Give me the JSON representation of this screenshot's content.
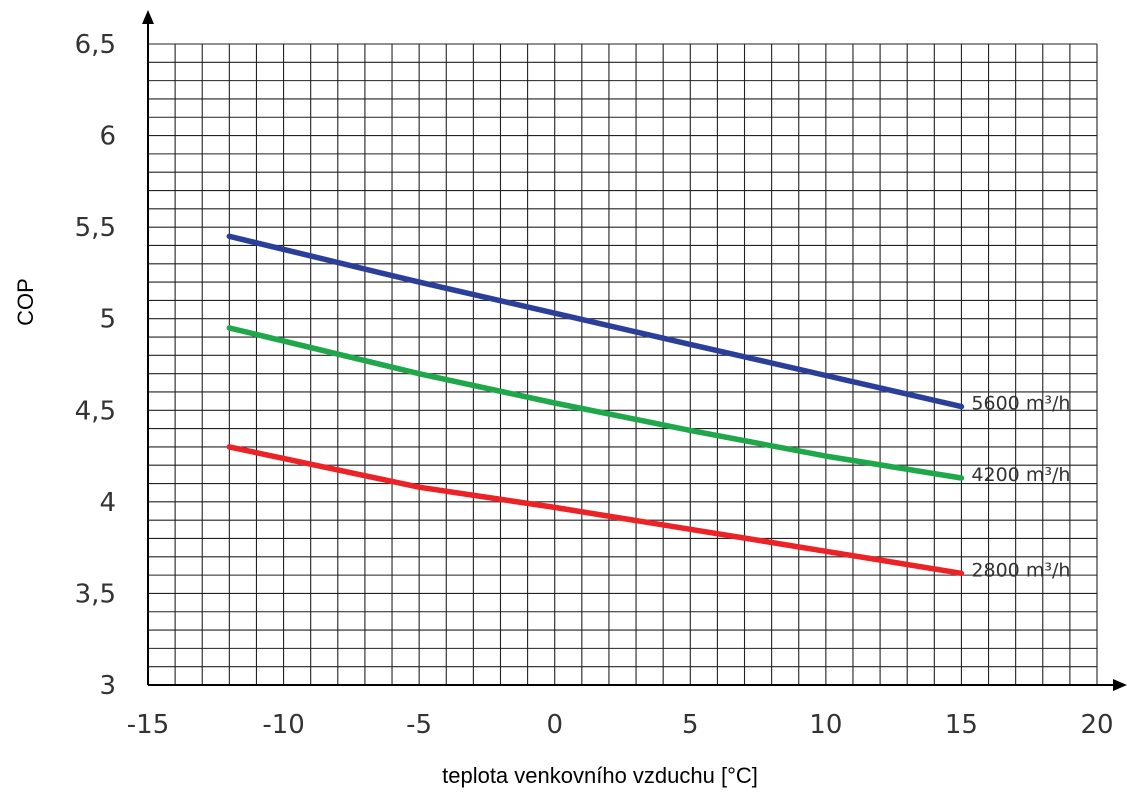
{
  "chart_data": {
    "type": "line",
    "xlabel": "teplota venkovního vzduchu [°C]",
    "ylabel": "COP",
    "xlim": [
      -15,
      20
    ],
    "ylim": [
      3,
      6.5
    ],
    "x_ticks": [
      "-15",
      "-10",
      "-5",
      "0",
      "5",
      "10",
      "15",
      "20"
    ],
    "y_ticks": [
      "3",
      "3,5",
      "4",
      "4,5",
      "5",
      "5,5",
      "6",
      "6,5"
    ],
    "grid": true,
    "series": [
      {
        "name": "5600 m³/h",
        "color": "#2a3f9a",
        "x": [
          -12,
          -5,
          0,
          5,
          10,
          15
        ],
        "y": [
          5.45,
          5.2,
          5.03,
          4.86,
          4.69,
          4.52
        ]
      },
      {
        "name": "4200 m³/h",
        "color": "#1fa84a",
        "x": [
          -12,
          -5,
          0,
          5,
          10,
          15
        ],
        "y": [
          4.95,
          4.7,
          4.54,
          4.39,
          4.25,
          4.13
        ]
      },
      {
        "name": "2800 m³/h",
        "color": "#ec2227",
        "x": [
          -12,
          -5,
          0,
          5,
          10,
          15
        ],
        "y": [
          4.3,
          4.08,
          3.97,
          3.85,
          3.73,
          3.61
        ]
      }
    ]
  }
}
